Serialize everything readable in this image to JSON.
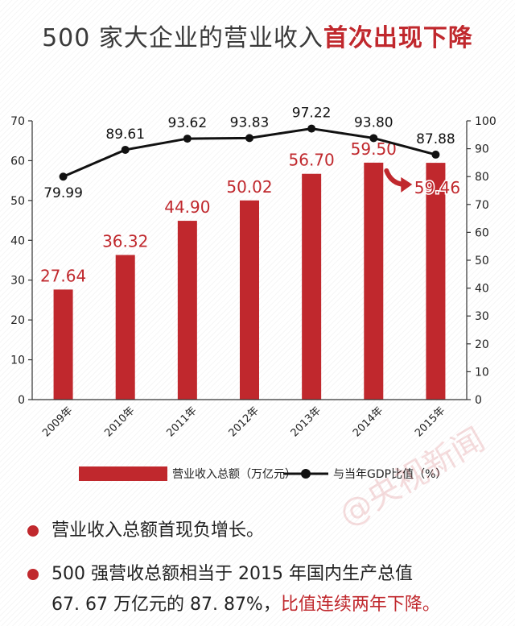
{
  "title": {
    "main": "500 家大企业的营业收入",
    "highlight": "首次出现下降"
  },
  "chart_data": {
    "type": "bar",
    "categories": [
      "2009年",
      "2010年",
      "2011年",
      "2012年",
      "2013年",
      "2014年",
      "2015年"
    ],
    "series": [
      {
        "name": "营业收入总额（万亿元）",
        "type": "bar",
        "axis": "left",
        "values": [
          27.64,
          36.32,
          44.9,
          50.02,
          56.7,
          59.5,
          59.46
        ],
        "labels": [
          "27.64",
          "36.32",
          "44.90",
          "50.02",
          "56.70",
          "59.50",
          "59.46"
        ]
      },
      {
        "name": "与当年GDP比值（%）",
        "type": "line",
        "axis": "right",
        "values": [
          79.99,
          89.61,
          93.62,
          93.83,
          97.22,
          93.8,
          87.88
        ],
        "labels": [
          "79.99",
          "89.61",
          "93.62",
          "93.83",
          "97.22",
          "93.80",
          "87.88"
        ]
      }
    ],
    "y_left": {
      "range": [
        0,
        70
      ],
      "ticks": [
        "0",
        "10",
        "20",
        "30",
        "40",
        "50",
        "60",
        "70"
      ]
    },
    "y_right": {
      "range": [
        0,
        100
      ],
      "ticks": [
        "0",
        "10",
        "20",
        "30",
        "40",
        "50",
        "60",
        "70",
        "80",
        "90",
        "100"
      ]
    },
    "grid": false,
    "legend_position": "bottom",
    "colors": {
      "bar": "#c0282d",
      "line": "#111111",
      "label": "#c0282d"
    }
  },
  "bullets": [
    {
      "text": "营业收入总额首现负增长。"
    },
    {
      "text_a": "500 强营收总额相当于 2015 年国内生产总值",
      "text_b": "67. 67 万亿元的 87. 87%，",
      "text_c": "比值连续两年下降。"
    }
  ],
  "watermark": "@央视新闻"
}
